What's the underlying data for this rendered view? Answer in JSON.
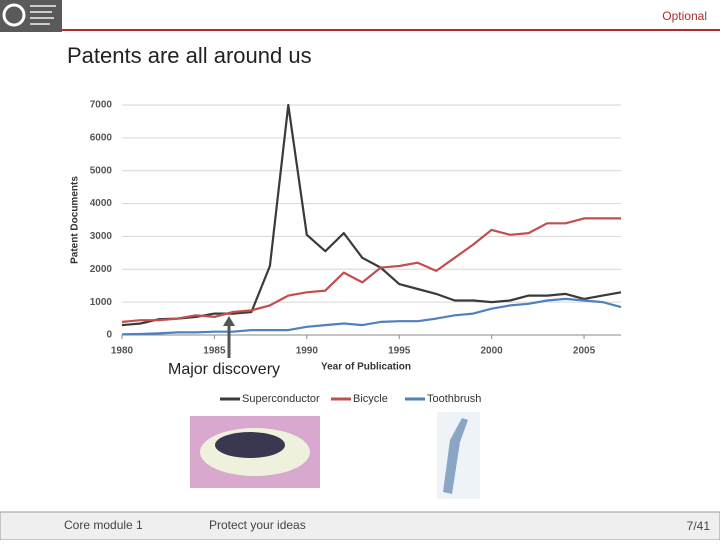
{
  "header": {
    "badge": "Optional"
  },
  "slide_title": "Patents are all around us",
  "chart_data": {
    "type": "line",
    "x_label": "Year of Publication",
    "y_label": "Patent Documents",
    "annotation": "Major discovery",
    "x": [
      1980,
      1981,
      1982,
      1983,
      1984,
      1985,
      1986,
      1987,
      1988,
      1989,
      1990,
      1991,
      1992,
      1993,
      1994,
      1995,
      1996,
      1997,
      1998,
      1999,
      2000,
      2001,
      2002,
      2003,
      2004,
      2005,
      2006,
      2007
    ],
    "series": [
      {
        "name": "Superconductor",
        "color": "#3a3a3a",
        "values": [
          300,
          350,
          480,
          500,
          550,
          650,
          650,
          700,
          2100,
          7000,
          3050,
          2550,
          3100,
          2350,
          2050,
          1550,
          1400,
          1250,
          1050,
          1050,
          1000,
          1050,
          1200,
          1200,
          1250,
          1100,
          1200,
          1300
        ]
      },
      {
        "name": "Bicycle",
        "color": "#c0504d",
        "values": [
          400,
          450,
          450,
          500,
          600,
          550,
          700,
          750,
          900,
          1200,
          1300,
          1350,
          1900,
          1600,
          2050,
          2100,
          2200,
          1950,
          2350,
          2750,
          3200,
          3050,
          3100,
          3400,
          3400,
          3550,
          3550,
          3550
        ]
      },
      {
        "name": "Toothbrush",
        "color": "#4f81bd",
        "values": [
          20,
          30,
          50,
          80,
          80,
          100,
          100,
          150,
          150,
          150,
          250,
          300,
          350,
          300,
          400,
          420,
          420,
          500,
          600,
          650,
          800,
          900,
          950,
          1050,
          1100,
          1050,
          1000,
          850
        ]
      }
    ],
    "xlim": [
      1980,
      2007
    ],
    "ylim": [
      0,
      7000
    ],
    "xticks": [
      1980,
      1985,
      1990,
      1995,
      2000,
      2005
    ],
    "yticks": [
      0,
      1000,
      2000,
      3000,
      4000,
      5000,
      6000,
      7000
    ],
    "grid": true,
    "legend": "bottom"
  },
  "footer": {
    "module": "Core module 1",
    "topic": "Protect your ideas",
    "page": "7/41"
  }
}
